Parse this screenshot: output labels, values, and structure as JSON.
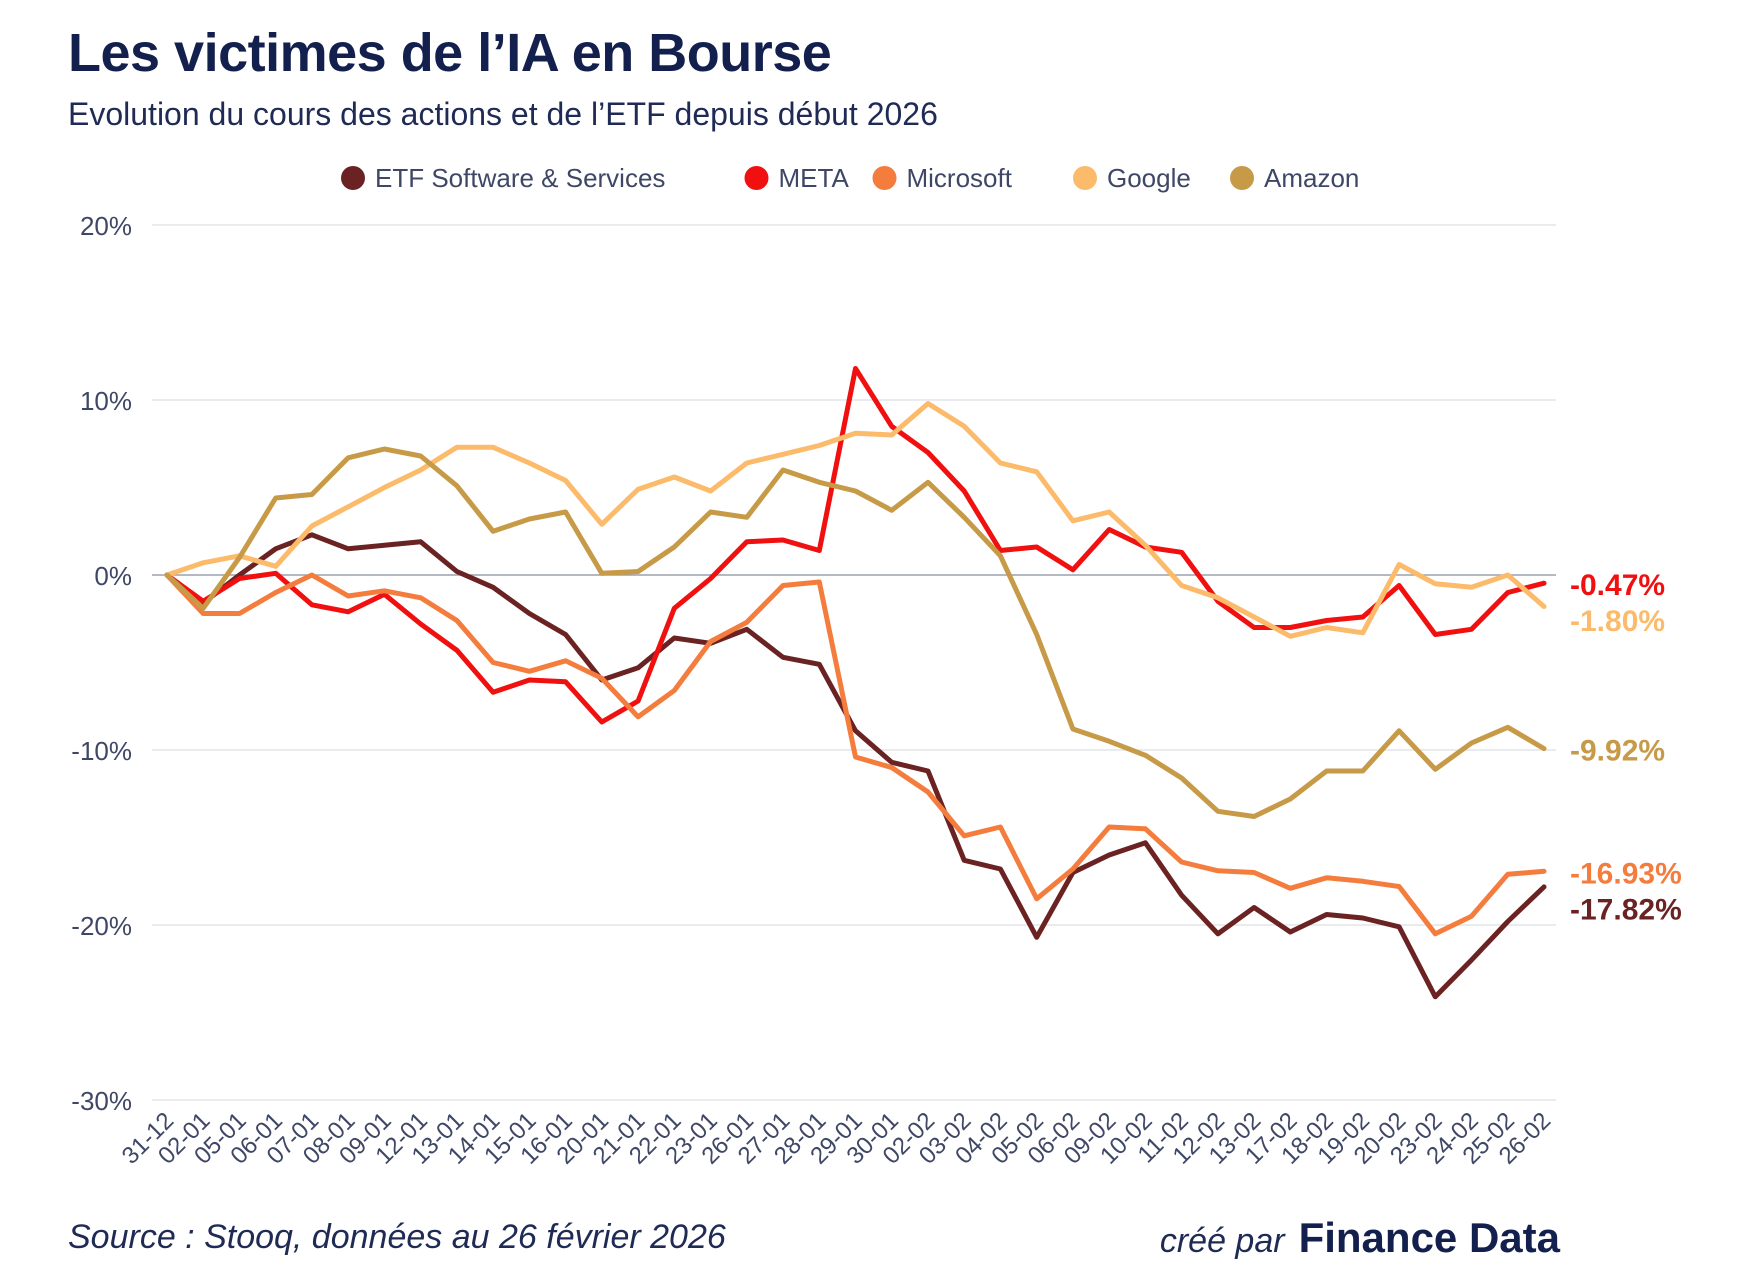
{
  "title": "Les victimes de l’IA en Bourse",
  "subtitle": "Evolution du cours des actions et de l’ETF depuis début 2026",
  "source": "Source : Stooq, données au 26 février 2026",
  "credit": {
    "prefix": "créé par",
    "brand": "Finance Data"
  },
  "chart_data": {
    "type": "line",
    "title": "Les victimes de l’IA en Bourse",
    "subtitle": "Evolution du cours des actions et de l’ETF depuis début 2026",
    "xlabel": "",
    "ylabel": "",
    "ylim": [
      -30,
      20
    ],
    "yticks": [
      20,
      10,
      0,
      -10,
      -20,
      -30
    ],
    "ytick_labels": [
      "20%",
      "10%",
      "0%",
      "-10%",
      "-20%",
      "-30%"
    ],
    "grid": true,
    "legend_position": "top-center",
    "categories": [
      "31-12",
      "02-01",
      "05-01",
      "06-01",
      "07-01",
      "08-01",
      "09-01",
      "12-01",
      "13-01",
      "14-01",
      "15-01",
      "16-01",
      "20-01",
      "21-01",
      "22-01",
      "23-01",
      "26-01",
      "27-01",
      "28-01",
      "29-01",
      "30-01",
      "02-02",
      "03-02",
      "04-02",
      "05-02",
      "06-02",
      "09-02",
      "10-02",
      "11-02",
      "12-02",
      "13-02",
      "17-02",
      "18-02",
      "19-02",
      "20-02",
      "23-02",
      "24-02",
      "25-02",
      "26-02"
    ],
    "series": [
      {
        "name": "ETF Software & Services",
        "color": "#6b2222",
        "end_label": "-17.82%",
        "values": [
          0.0,
          -1.6,
          0.0,
          1.5,
          2.3,
          1.5,
          1.7,
          1.9,
          0.2,
          -0.7,
          -2.2,
          -3.4,
          -6.0,
          -5.3,
          -3.6,
          -3.9,
          -3.1,
          -4.7,
          -5.1,
          -8.9,
          -10.7,
          -11.2,
          -16.3,
          -16.8,
          -20.7,
          -17.0,
          -16.0,
          -15.3,
          -18.3,
          -20.5,
          -19.0,
          -20.4,
          -19.4,
          -19.6,
          -20.1,
          -24.1,
          -22.0,
          -19.8,
          -17.82
        ]
      },
      {
        "name": "META",
        "color": "#f01010",
        "end_label": "-0.47%",
        "values": [
          0.0,
          -1.5,
          -0.2,
          0.1,
          -1.7,
          -2.1,
          -1.1,
          -2.8,
          -4.3,
          -6.7,
          -6.0,
          -6.1,
          -8.4,
          -7.2,
          -1.9,
          -0.2,
          1.9,
          2.0,
          1.4,
          11.8,
          8.5,
          7.0,
          4.8,
          1.4,
          1.6,
          0.3,
          2.6,
          1.6,
          1.3,
          -1.5,
          -3.0,
          -3.0,
          -2.6,
          -2.4,
          -0.6,
          -3.4,
          -3.1,
          -1.0,
          -0.47
        ]
      },
      {
        "name": "Microsoft",
        "color": "#f47d3e",
        "end_label": "-16.93%",
        "values": [
          0.0,
          -2.2,
          -2.2,
          -1.0,
          0.0,
          -1.2,
          -0.9,
          -1.3,
          -2.6,
          -5.0,
          -5.5,
          -4.9,
          -5.9,
          -8.1,
          -6.6,
          -3.8,
          -2.7,
          -0.6,
          -0.4,
          -10.4,
          -11.0,
          -12.4,
          -14.9,
          -14.4,
          -18.5,
          -16.8,
          -14.4,
          -14.5,
          -16.4,
          -16.9,
          -17.0,
          -17.9,
          -17.3,
          -17.5,
          -17.8,
          -20.5,
          -19.5,
          -17.1,
          -16.93
        ]
      },
      {
        "name": "Google",
        "color": "#fbbb6a",
        "end_label": "-1.80%",
        "values": [
          0.0,
          0.7,
          1.1,
          0.5,
          2.8,
          3.9,
          5.0,
          6.0,
          7.3,
          7.3,
          6.4,
          5.4,
          2.9,
          4.9,
          5.6,
          4.8,
          6.4,
          6.9,
          7.4,
          8.1,
          8.0,
          9.8,
          8.5,
          6.4,
          5.9,
          3.1,
          3.6,
          1.7,
          -0.6,
          -1.3,
          -2.4,
          -3.5,
          -3.0,
          -3.3,
          0.6,
          -0.5,
          -0.7,
          0.0,
          -1.8
        ]
      },
      {
        "name": "Amazon",
        "color": "#c79a48",
        "end_label": "-9.92%",
        "values": [
          0.0,
          -1.9,
          1.0,
          4.4,
          4.6,
          6.7,
          7.2,
          6.8,
          5.1,
          2.5,
          3.2,
          3.6,
          0.1,
          0.2,
          1.6,
          3.6,
          3.3,
          6.0,
          5.3,
          4.8,
          3.7,
          5.3,
          3.3,
          1.1,
          -3.4,
          -8.8,
          -9.5,
          -10.3,
          -11.6,
          -13.5,
          -13.8,
          -12.8,
          -11.2,
          -11.2,
          -8.9,
          -11.1,
          -9.6,
          -8.7,
          -9.92
        ]
      }
    ]
  }
}
